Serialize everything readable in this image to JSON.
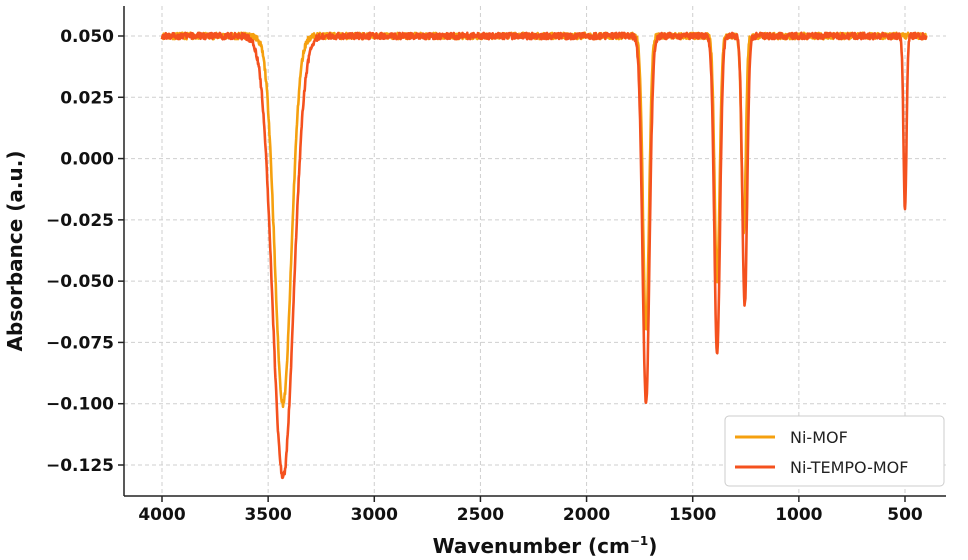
{
  "chart_data": {
    "type": "line",
    "xlabel": "Wavenumber (cm",
    "xlabel_sup": "−1",
    "xlabel_end": ")",
    "ylabel": "Absorbance (a.u.)",
    "xlim": [
      4000,
      400
    ],
    "x_reversed": true,
    "ylim": [
      -0.135,
      0.062
    ],
    "xticks": [
      4000,
      3500,
      3000,
      2500,
      2000,
      1500,
      1000,
      500
    ],
    "xtick_labels": [
      "4000",
      "3500",
      "3000",
      "2500",
      "2000",
      "1500",
      "1000",
      "500"
    ],
    "yticks": [
      0.05,
      0.025,
      0.0,
      -0.025,
      -0.05,
      -0.075,
      -0.1,
      -0.125
    ],
    "ytick_labels": [
      "0.050",
      "0.025",
      "0.000",
      "−0.025",
      "−0.050",
      "−0.075",
      "−0.100",
      "−0.125"
    ],
    "grid": true,
    "legend_position": "bottom-right",
    "baseline": 0.05,
    "series": [
      {
        "name": "Ni-MOF",
        "color": "#f5a00f",
        "peaks": [
          {
            "center": 3430,
            "depth": -0.1,
            "width": 55
          },
          {
            "center": 1720,
            "depth": -0.07,
            "width": 20
          },
          {
            "center": 1385,
            "depth": -0.05,
            "width": 17
          },
          {
            "center": 1260,
            "depth": -0.031,
            "width": 14
          }
        ],
        "sampled_points": [
          [
            4000,
            0.049
          ],
          [
            3600,
            0.05
          ],
          [
            3500,
            0.042
          ],
          [
            3460,
            0.0
          ],
          [
            3430,
            -0.1
          ],
          [
            3400,
            0.0
          ],
          [
            3350,
            0.045
          ],
          [
            3300,
            0.05
          ],
          [
            1800,
            0.05
          ],
          [
            1720,
            -0.07
          ],
          [
            1650,
            0.05
          ],
          [
            1385,
            -0.05
          ],
          [
            1310,
            0.049
          ],
          [
            1260,
            -0.031
          ],
          [
            1200,
            0.05
          ],
          [
            500,
            0.05
          ],
          [
            400,
            0.05
          ]
        ]
      },
      {
        "name": "Ni-TEMPO-MOF",
        "color": "#f4511e",
        "peaks": [
          {
            "center": 3430,
            "depth": -0.13,
            "width": 70
          },
          {
            "center": 1720,
            "depth": -0.1,
            "width": 23
          },
          {
            "center": 1385,
            "depth": -0.08,
            "width": 19
          },
          {
            "center": 1255,
            "depth": -0.06,
            "width": 16
          },
          {
            "center": 500,
            "depth": -0.021,
            "width": 10
          }
        ],
        "sampled_points": [
          [
            4000,
            0.049
          ],
          [
            3600,
            0.049
          ],
          [
            3500,
            0.03
          ],
          [
            3430,
            -0.13
          ],
          [
            3350,
            0.02
          ],
          [
            3280,
            0.049
          ],
          [
            1800,
            0.05
          ],
          [
            1720,
            -0.1
          ],
          [
            1640,
            0.05
          ],
          [
            1385,
            -0.08
          ],
          [
            1320,
            0.041
          ],
          [
            1255,
            -0.06
          ],
          [
            1200,
            0.05
          ],
          [
            530,
            0.05
          ],
          [
            500,
            -0.021
          ],
          [
            470,
            0.05
          ],
          [
            400,
            0.05
          ]
        ]
      }
    ]
  }
}
